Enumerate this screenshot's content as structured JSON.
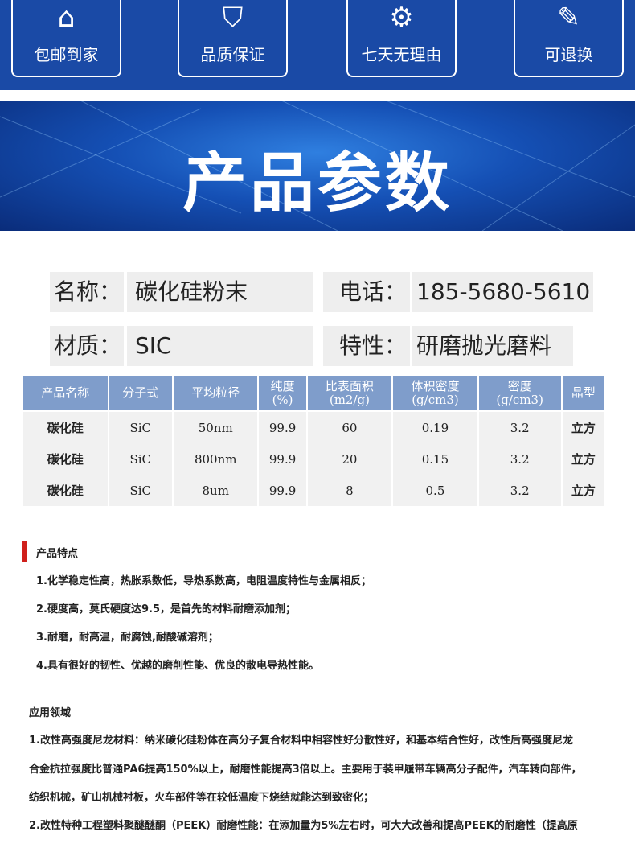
{
  "services": [
    {
      "label": "包邮到家",
      "icon": "house-icon"
    },
    {
      "label": "品质保证",
      "icon": "shield-icon"
    },
    {
      "label": "七天无理由",
      "icon": "gear-icon"
    },
    {
      "label": "可退换",
      "icon": "pencil-ruler-icon"
    }
  ],
  "banner": {
    "title": "产品参数"
  },
  "info": {
    "name_label": "名称：",
    "name_value": "碳化硅粉末",
    "phone_label": "电话：",
    "phone_value": "185-5680-5610",
    "material_label": "材质：",
    "material_value": "SIC",
    "feature_label": "特性：",
    "feature_value": "研磨抛光磨料"
  },
  "table": {
    "headers": [
      [
        "产品名称",
        ""
      ],
      [
        "分子式",
        ""
      ],
      [
        "平均粒径",
        ""
      ],
      [
        "纯度",
        "(%)"
      ],
      [
        "比表面积",
        "(m2/g)"
      ],
      [
        "体积密度",
        "(g/cm3)"
      ],
      [
        "密度",
        "(g/cm3)"
      ],
      [
        "晶型",
        ""
      ]
    ],
    "rows": [
      [
        "碳化硅",
        "SiC",
        "50nm",
        "99.9",
        "60",
        "0.19",
        "3.2",
        "立方"
      ],
      [
        "碳化硅",
        "SiC",
        "800nm",
        "99.9",
        "20",
        "0.15",
        "3.2",
        "立方"
      ],
      [
        "碳化硅",
        "SiC",
        "8um",
        "99.9",
        "8",
        "0.5",
        "3.2",
        "立方"
      ]
    ]
  },
  "features": {
    "title": "产品特点",
    "items": [
      "1.化学稳定性高，热胀系数低，导热系数高，电阻温度特性与金属相反；",
      "2.硬度高，莫氏硬度达9.5，是首先的材料耐磨添加剂；",
      "3.耐磨，耐高温，耐腐蚀,耐酸碱溶剂；",
      "4.具有很好的韧性、优越的磨削性能、优良的散电导热性能。"
    ]
  },
  "applications": {
    "title": "应用领域",
    "lines": [
      "1.改性高强度尼龙材料：纳米碳化硅粉体在高分子复合材料中相容性好分散性好，和基本结合性好，改性后高强度尼龙",
      "合金抗拉强度比普通PA6提高150%以上，耐磨性能提高3倍以上。主要用于装甲履带车辆高分子配件，汽车转向部件，",
      "纺织机械，矿山机械衬板，火车部件等在较低温度下烧结就能达到致密化；",
      "2.改性特种工程塑料聚醚醚酮（PEEK）耐磨性能：在添加量为5%左右时，可大大改善和提高PEEK的耐磨性（提高原"
    ]
  },
  "colors": {
    "brand_blue": "#1a4aa6",
    "table_header": "#7f9dcb",
    "accent_red": "#d0201c"
  }
}
